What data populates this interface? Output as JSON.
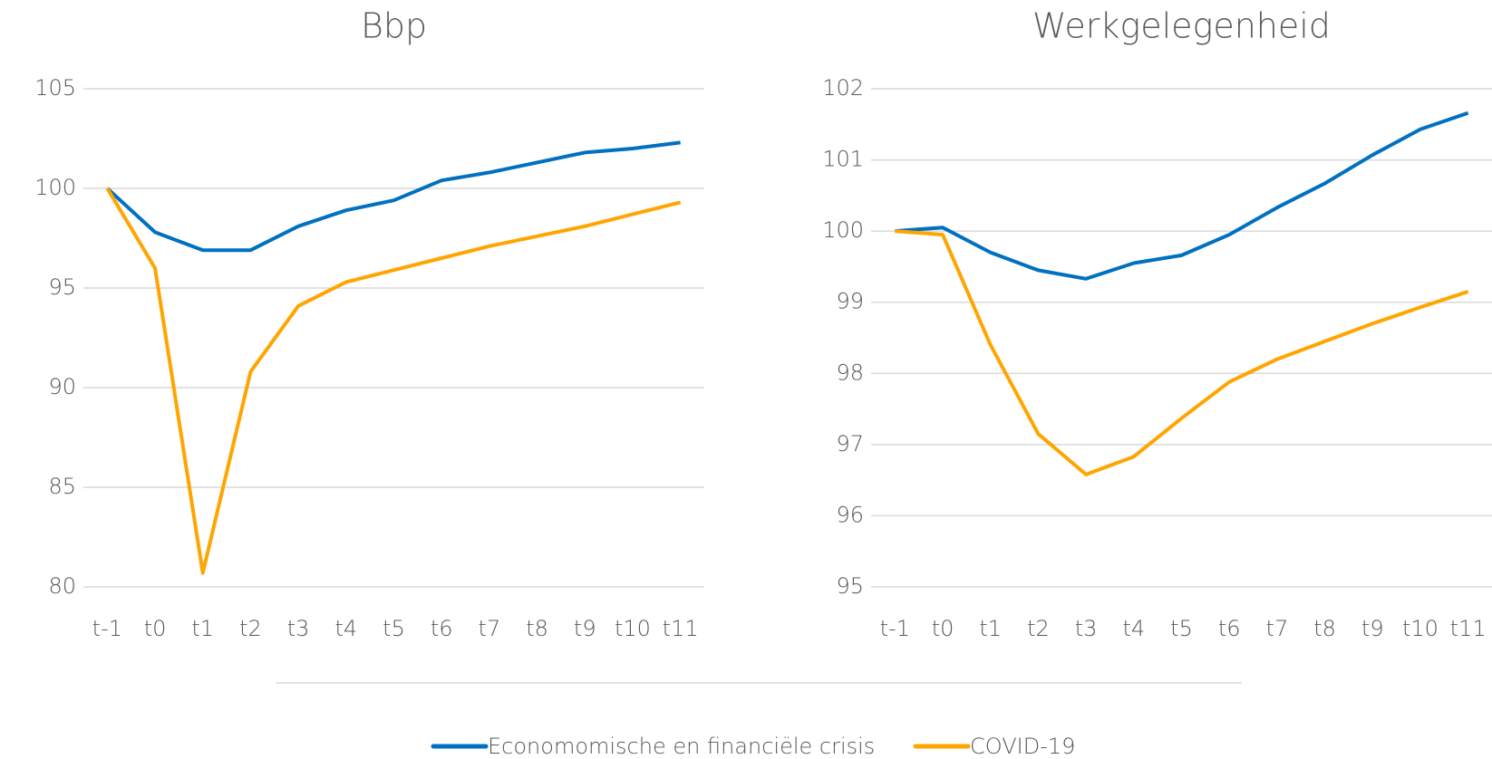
{
  "chart_data": [
    {
      "type": "line",
      "title": "Bbp",
      "categories": [
        "t-1",
        "t0",
        "t1",
        "t2",
        "t3",
        "t4",
        "t5",
        "t6",
        "t7",
        "t8",
        "t9",
        "t10",
        "t11"
      ],
      "series": [
        {
          "name": "Economomische en financiële crisis",
          "color": "#0070c0",
          "values": [
            100,
            97.8,
            96.9,
            96.9,
            98.1,
            98.9,
            99.4,
            100.4,
            100.8,
            101.3,
            101.8,
            102.0,
            102.3
          ]
        },
        {
          "name": "COVID-19",
          "color": "#ffa500",
          "values": [
            100,
            96.0,
            80.7,
            90.8,
            94.1,
            95.3,
            95.9,
            96.5,
            97.1,
            97.6,
            98.1,
            98.7,
            99.3
          ]
        }
      ],
      "ylim": [
        80,
        105
      ],
      "yticks": [
        80,
        85,
        90,
        95,
        100,
        105
      ],
      "grid": true
    },
    {
      "type": "line",
      "title": "Werkgelegenheid",
      "categories": [
        "t-1",
        "t0",
        "t1",
        "t2",
        "t3",
        "t4",
        "t5",
        "t6",
        "t7",
        "t8",
        "t9",
        "t10",
        "t11"
      ],
      "series": [
        {
          "color": "#0070c0",
          "values": [
            100,
            100.05,
            99.7,
            99.45,
            99.33,
            99.55,
            99.66,
            99.95,
            100.33,
            100.67,
            101.07,
            101.43,
            101.66
          ]
        },
        {
          "color": "#ffa500",
          "values": [
            100,
            99.95,
            98.4,
            97.15,
            96.58,
            96.83,
            97.37,
            97.88,
            98.2,
            98.45,
            98.7,
            98.93,
            99.15
          ]
        }
      ],
      "ylim": [
        95,
        102
      ],
      "yticks": [
        95,
        96,
        97,
        98,
        99,
        100,
        101,
        102
      ],
      "grid": true
    }
  ]
}
